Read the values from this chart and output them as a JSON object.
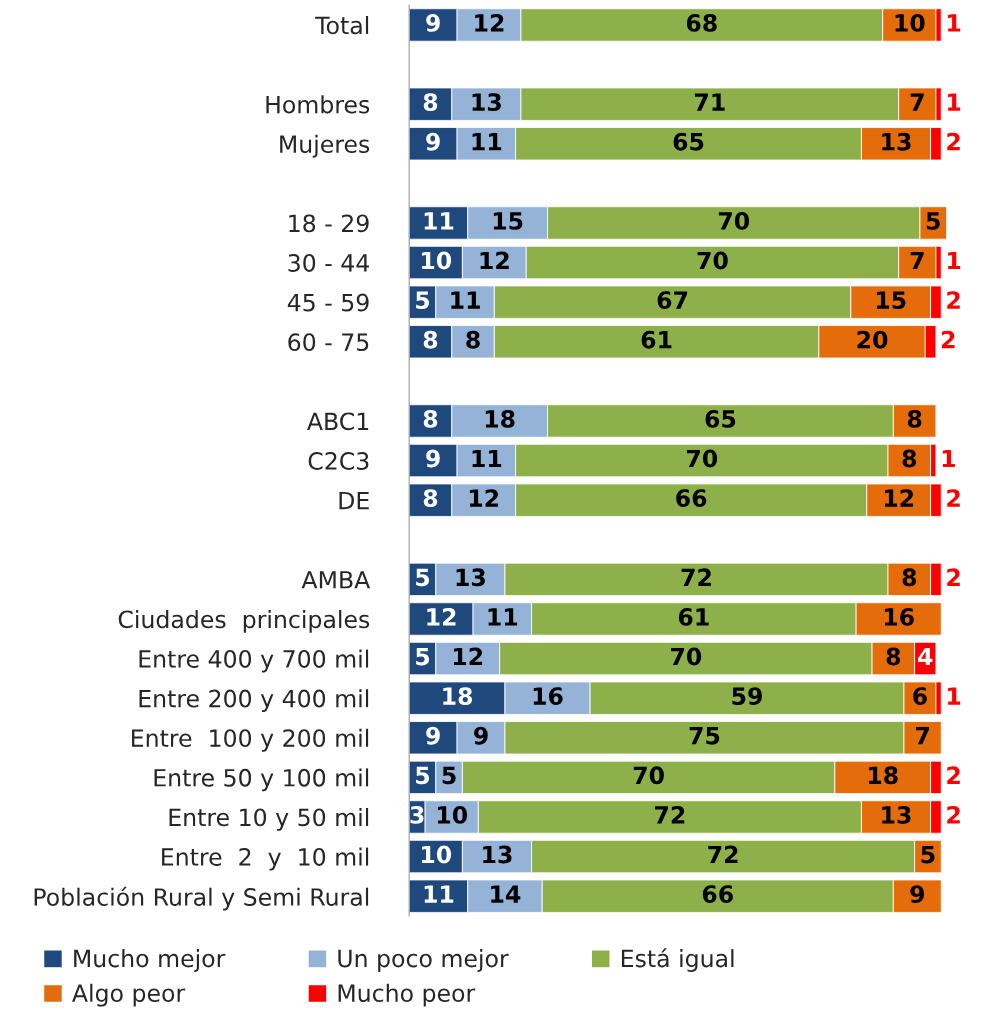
{
  "chart_data": {
    "type": "bar",
    "orientation": "horizontal",
    "stacked": true,
    "data_labels": true,
    "tick_labels": "y",
    "grid": false,
    "legend": "bottom",
    "xlim": [
      0,
      101
    ],
    "categories": [
      "Total",
      null,
      "Hombres",
      "Mujeres",
      null,
      "18 - 29",
      "30 - 44",
      "45 - 59",
      "60 - 75",
      null,
      "ABC1",
      "C2C3",
      "DE",
      null,
      "AMBA",
      "Ciudades  principales",
      "Entre 400 y 700 mil",
      "Entre 200 y 400 mil",
      "Entre  100 y 200 mil",
      "Entre 50 y 100 mil",
      "Entre 10 y 50 mil",
      "Entre  2  y  10 mil",
      "Población Rural y Semi Rural"
    ],
    "series": [
      {
        "name": "Mucho mejor",
        "color": "#1f497d",
        "values": [
          9,
          null,
          8,
          9,
          null,
          11,
          10,
          5,
          8,
          null,
          8,
          9,
          8,
          null,
          5,
          12,
          5,
          18,
          9,
          5,
          3,
          10,
          11
        ]
      },
      {
        "name": "Un poco mejor",
        "color": "#95b3d7",
        "values": [
          12,
          null,
          13,
          11,
          null,
          15,
          12,
          11,
          8,
          null,
          18,
          11,
          12,
          null,
          13,
          11,
          12,
          16,
          9,
          5,
          10,
          13,
          14
        ]
      },
      {
        "name": "Está igual",
        "color": "#8db04a",
        "values": [
          68,
          null,
          71,
          65,
          null,
          70,
          70,
          67,
          61,
          null,
          65,
          70,
          66,
          null,
          72,
          61,
          70,
          59,
          75,
          70,
          72,
          72,
          66
        ]
      },
      {
        "name": "Algo peor",
        "color": "#e46c0a",
        "values": [
          10,
          null,
          7,
          13,
          null,
          5,
          7,
          15,
          20,
          null,
          8,
          8,
          12,
          null,
          8,
          16,
          8,
          6,
          7,
          18,
          13,
          5,
          9
        ]
      },
      {
        "name": "Mucho peor",
        "color": "#ff0000",
        "values": [
          1,
          null,
          1,
          2,
          null,
          null,
          1,
          2,
          2,
          null,
          null,
          1,
          2,
          null,
          2,
          null,
          4,
          1,
          null,
          2,
          2,
          null,
          null
        ]
      }
    ]
  }
}
